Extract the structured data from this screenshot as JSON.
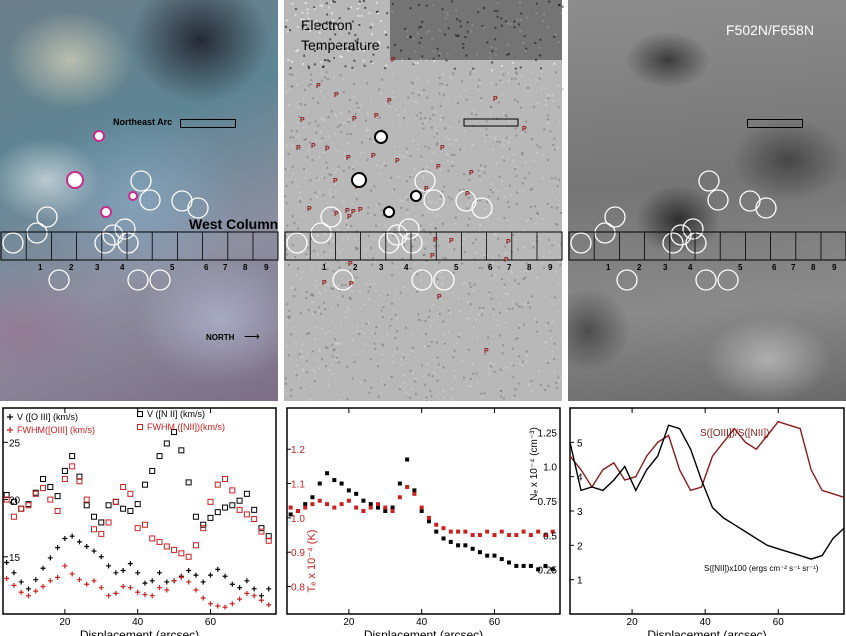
{
  "images": {
    "color_label": "",
    "temperature_label_line1": "Electron",
    "temperature_label_line2": "Temperature",
    "ratio_label": "F502N/F658N",
    "northeast_arc": "Northeast Arc",
    "west_column": "West Column",
    "north": "NORTH",
    "p_marker": "P",
    "column_numbers": [
      "1",
      "2",
      "3",
      "4",
      "5",
      "6",
      "7",
      "8",
      "9"
    ]
  },
  "colors": {
    "black_series": "#000000",
    "red_series": "#cc2020",
    "dark_red": "#8b1a1a",
    "circle_white": "#ffffff"
  },
  "chart_data": [
    {
      "type": "scatter",
      "xlabel": "Displacement (arcsec)",
      "ylabel": "",
      "xlim": [
        3,
        78
      ],
      "ylim": [
        10,
        28
      ],
      "x_ticks": [
        20,
        40,
        60
      ],
      "y_ticks": [
        15,
        20,
        25
      ],
      "legend": [
        {
          "name": "V ([O III] (km/s)",
          "marker": "+",
          "color": "#000000"
        },
        {
          "name": "FWHM([OIII] (km/s)",
          "marker": "+",
          "color": "#cc2020"
        },
        {
          "name": "V ([N II] (km/s)",
          "marker": "square",
          "color": "#000000"
        },
        {
          "name": "FWHM ([NII])(km/s)",
          "marker": "square",
          "color": "#cc2020"
        }
      ],
      "series": [
        {
          "name": "V ([O III] (km/s)",
          "x": [
            4,
            6,
            8,
            10,
            12,
            14,
            16,
            18,
            20,
            22,
            24,
            26,
            28,
            30,
            32,
            34,
            36,
            38,
            40,
            42,
            44,
            46,
            48,
            50,
            52,
            54,
            56,
            58,
            60,
            62,
            64,
            66,
            68,
            70,
            72,
            74,
            76
          ],
          "y": [
            14.5,
            13.6,
            12.8,
            12.2,
            13.0,
            14.0,
            14.9,
            15.8,
            16.6,
            16.8,
            16.3,
            15.9,
            15.5,
            15.0,
            14.2,
            13.6,
            13.8,
            14.4,
            13.6,
            12.7,
            12.9,
            13.6,
            12.8,
            12.9,
            13.3,
            13.8,
            13.4,
            12.8,
            13.4,
            13.9,
            13.3,
            12.6,
            12.3,
            12.9,
            12.2,
            11.6,
            12.2
          ]
        },
        {
          "name": "FWHM([OIII] (km/s)",
          "x": [
            4,
            6,
            8,
            10,
            12,
            14,
            16,
            18,
            20,
            22,
            24,
            26,
            28,
            30,
            32,
            34,
            36,
            38,
            40,
            42,
            44,
            46,
            48,
            50,
            52,
            54,
            56,
            58,
            60,
            62,
            64,
            66,
            68,
            70,
            72,
            74,
            76
          ],
          "y": [
            13.1,
            12.5,
            11.9,
            11.6,
            12.0,
            12.4,
            12.9,
            13.2,
            14.2,
            13.5,
            13.0,
            12.6,
            12.9,
            12.3,
            11.6,
            11.8,
            12.4,
            12.3,
            11.9,
            11.7,
            11.6,
            12.3,
            12.1,
            12.9,
            13.2,
            12.8,
            12.1,
            11.4,
            10.9,
            10.7,
            10.6,
            10.9,
            11.3,
            11.8,
            11.6,
            11.2,
            10.8
          ]
        },
        {
          "name": "V ([N II] (km/s)",
          "x": [
            4,
            6,
            8,
            10,
            12,
            14,
            16,
            18,
            20,
            22,
            24,
            26,
            28,
            30,
            32,
            34,
            36,
            38,
            40,
            42,
            44,
            46,
            48,
            50,
            52,
            54,
            56,
            58,
            60,
            62,
            64,
            66,
            68,
            70,
            72,
            74,
            76
          ],
          "y": [
            20.4,
            19.8,
            19.2,
            19.6,
            20.6,
            21.8,
            21.1,
            20.3,
            22.5,
            23.8,
            22.0,
            19.5,
            18.5,
            18.0,
            19.5,
            19.8,
            19.2,
            19.0,
            19.6,
            21.3,
            22.5,
            23.8,
            24.9,
            25.9,
            24.3,
            21.5,
            18.5,
            17.8,
            18.4,
            18.9,
            19.3,
            19.5,
            19.9,
            20.5,
            19.1,
            17.5,
            16.8
          ]
        },
        {
          "name": "FWHM ([NII])(km/s)",
          "x": [
            4,
            6,
            8,
            10,
            12,
            14,
            16,
            18,
            20,
            22,
            24,
            26,
            28,
            30,
            32,
            34,
            36,
            38,
            40,
            42,
            44,
            46,
            48,
            50,
            52,
            54,
            56,
            58,
            60,
            62,
            64,
            66,
            68,
            70,
            72,
            74,
            76
          ],
          "y": [
            20.0,
            18.5,
            19.2,
            19.5,
            20.5,
            21.0,
            20.0,
            19.0,
            21.8,
            22.9,
            21.6,
            20.0,
            17.4,
            17.0,
            18.0,
            19.8,
            21.1,
            20.5,
            17.5,
            17.8,
            16.6,
            16.3,
            15.9,
            15.6,
            15.3,
            15.0,
            16.0,
            17.5,
            19.8,
            21.3,
            21.8,
            20.8,
            19.1,
            18.7,
            18.3,
            17.2,
            16.4
          ]
        }
      ]
    },
    {
      "type": "scatter",
      "xlabel": "Displacement (arcsec)",
      "ylabel": "Tₑ x 10⁻⁴ (K)",
      "xlim": [
        3,
        78
      ],
      "ylim": [
        0.72,
        1.32
      ],
      "x_ticks": [
        20,
        40,
        60
      ],
      "y_ticks": [
        0.8,
        0.9,
        1.0,
        1.1,
        1.2
      ],
      "series": [
        {
          "name": "",
          "x": [
            4,
            6,
            8,
            10,
            12,
            14,
            16,
            18,
            20,
            22,
            24,
            26,
            28,
            30,
            32,
            34,
            36,
            38,
            40,
            42,
            44,
            46,
            48,
            50,
            52,
            54,
            56,
            58,
            60,
            62,
            64,
            66,
            68,
            70,
            72,
            74,
            76
          ],
          "y": [
            1.01,
            1.02,
            1.04,
            1.06,
            1.1,
            1.13,
            1.11,
            1.1,
            1.08,
            1.07,
            1.05,
            1.04,
            1.03,
            1.02,
            1.03,
            1.1,
            1.17,
            1.08,
            1.02,
            0.99,
            0.96,
            0.94,
            0.93,
            0.92,
            0.92,
            0.91,
            0.9,
            0.89,
            0.89,
            0.88,
            0.87,
            0.86,
            0.86,
            0.86,
            0.85,
            0.86,
            0.85
          ],
          "color": "#000000"
        },
        {
          "name": "",
          "x": [
            4,
            6,
            8,
            10,
            12,
            14,
            16,
            18,
            20,
            22,
            24,
            26,
            28,
            30,
            32,
            34,
            36,
            38,
            40,
            42,
            44,
            46,
            48,
            50,
            52,
            54,
            56,
            58,
            60,
            62,
            64,
            66,
            68,
            70,
            72,
            74,
            76
          ],
          "y": [
            1.03,
            1.02,
            1.03,
            1.04,
            1.05,
            1.04,
            1.03,
            1.04,
            1.05,
            1.03,
            1.02,
            1.03,
            1.04,
            1.03,
            1.02,
            1.06,
            1.09,
            1.07,
            1.03,
            1.0,
            0.98,
            0.97,
            0.96,
            0.96,
            0.96,
            0.95,
            0.95,
            0.96,
            0.95,
            0.96,
            0.95,
            0.95,
            0.96,
            0.95,
            0.96,
            0.95,
            0.96
          ],
          "color": "#cc2020"
        }
      ]
    },
    {
      "type": "line",
      "xlabel": "Displacement (arcsec)",
      "ylabel": "Nₑ x 10⁻⁴ (cm⁻³)",
      "xlim": [
        3,
        78
      ],
      "ylim": [
        0,
        6
      ],
      "x_ticks": [
        20,
        40,
        60
      ],
      "y_ticks_left": [
        1,
        2,
        3,
        4,
        5
      ],
      "y_ticks_right": [
        "0.25",
        "0.5",
        "0.75",
        "1.0",
        "1.25"
      ],
      "annotations": [
        "S([OIII])/S([NII])",
        "S([NII])x100 (ergs cm⁻² s⁻¹ sr⁻¹)"
      ],
      "series": [
        {
          "name": "S([OIII])/S([NII])",
          "x": [
            3,
            6,
            9,
            12,
            15,
            18,
            21,
            24,
            27,
            30,
            33,
            36,
            39,
            42,
            45,
            48,
            51,
            54,
            57,
            60,
            63,
            66,
            69,
            72,
            75,
            78
          ],
          "y": [
            4.6,
            4.2,
            3.7,
            4.2,
            4.4,
            3.9,
            4.0,
            4.6,
            5.0,
            5.2,
            4.2,
            3.6,
            3.7,
            4.6,
            5.0,
            5.4,
            5.0,
            4.8,
            5.2,
            5.6,
            5.5,
            5.4,
            4.2,
            3.6,
            3.5,
            3.4
          ],
          "color": "#8b1a1a"
        },
        {
          "name": "S([NII])x100 (ergs cm⁻² s⁻¹ sr⁻¹)",
          "x": [
            3,
            6,
            9,
            12,
            15,
            18,
            21,
            24,
            27,
            30,
            33,
            36,
            39,
            42,
            45,
            48,
            51,
            54,
            57,
            60,
            63,
            66,
            69,
            72,
            75,
            78
          ],
          "y": [
            5.0,
            3.6,
            3.7,
            3.6,
            3.9,
            4.3,
            3.6,
            4.2,
            4.6,
            5.5,
            5.4,
            4.8,
            3.9,
            3.1,
            2.8,
            2.6,
            2.4,
            2.2,
            2.0,
            1.9,
            1.8,
            1.7,
            1.6,
            1.7,
            2.2,
            2.5
          ],
          "color": "#000000"
        }
      ]
    }
  ]
}
